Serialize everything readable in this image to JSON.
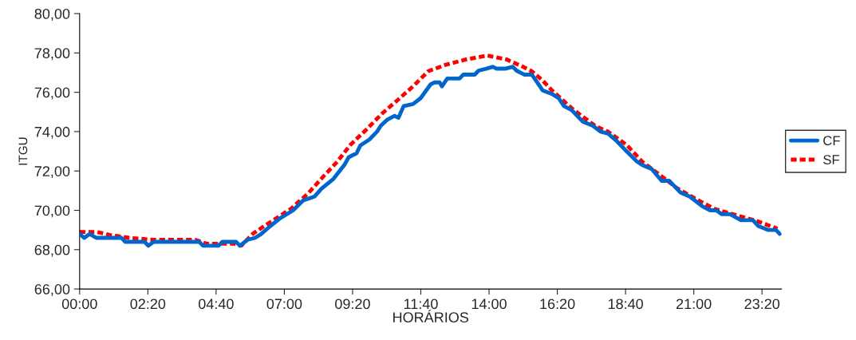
{
  "chart_data": {
    "type": "line",
    "xlabel": "HORÁRIOS",
    "ylabel": "ITGU",
    "xlim": [
      0,
      24
    ],
    "ylim": [
      66,
      80
    ],
    "xticks": [
      {
        "value": 0,
        "label": "00:00"
      },
      {
        "value": 2.3333,
        "label": "02:20"
      },
      {
        "value": 4.6667,
        "label": "04:40"
      },
      {
        "value": 7,
        "label": "07:00"
      },
      {
        "value": 9.3333,
        "label": "09:20"
      },
      {
        "value": 11.6667,
        "label": "11:40"
      },
      {
        "value": 14,
        "label": "14:00"
      },
      {
        "value": 16.3333,
        "label": "16:20"
      },
      {
        "value": 18.6667,
        "label": "18:40"
      },
      {
        "value": 21,
        "label": "21:00"
      },
      {
        "value": 23.3333,
        "label": "23:20"
      }
    ],
    "yticks": [
      {
        "value": 66,
        "label": "66,00"
      },
      {
        "value": 68,
        "label": "68,00"
      },
      {
        "value": 70,
        "label": "70,00"
      },
      {
        "value": 72,
        "label": "72,00"
      },
      {
        "value": 74,
        "label": "74,00"
      },
      {
        "value": 76,
        "label": "76,00"
      },
      {
        "value": 78,
        "label": "78,00"
      },
      {
        "value": 80,
        "label": "80,00"
      }
    ],
    "grid": false,
    "legend": "right",
    "marker": "none",
    "series": [
      {
        "name": "CF",
        "color": "#0066cc",
        "line_style": "solid",
        "x": [
          0,
          0.16,
          0.34,
          0.57,
          1.43,
          1.56,
          2.22,
          2.35,
          2.53,
          4.09,
          4.22,
          4.75,
          4.88,
          5.35,
          5.48,
          5.74,
          6.0,
          6.21,
          6.52,
          6.86,
          7.3,
          7.64,
          8.03,
          8.27,
          8.68,
          9.05,
          9.2,
          9.47,
          9.6,
          9.91,
          10.17,
          10.3,
          10.51,
          10.77,
          10.9,
          11.08,
          11.4,
          11.66,
          12.0,
          12.13,
          12.31,
          12.39,
          12.57,
          12.99,
          13.12,
          13.51,
          13.64,
          13.9,
          14.13,
          14.26,
          14.55,
          14.81,
          14.94,
          15.2,
          15.46,
          15.65,
          15.83,
          16.17,
          16.38,
          16.56,
          16.82,
          17.21,
          17.55,
          17.81,
          18.07,
          18.38,
          18.7,
          19.04,
          19.24,
          19.56,
          19.9,
          20.16,
          20.55,
          20.86,
          21.3,
          21.56,
          21.77,
          21.96,
          22.24,
          22.61,
          23.02,
          23.21,
          23.55,
          23.81,
          23.94
        ],
        "values": [
          68.8,
          68.6,
          68.8,
          68.6,
          68.6,
          68.4,
          68.4,
          68.2,
          68.4,
          68.4,
          68.2,
          68.2,
          68.4,
          68.4,
          68.2,
          68.5,
          68.6,
          68.8,
          69.2,
          69.6,
          70.0,
          70.5,
          70.7,
          71.1,
          71.6,
          72.3,
          72.7,
          72.9,
          73.3,
          73.6,
          74.0,
          74.3,
          74.6,
          74.8,
          74.7,
          75.3,
          75.4,
          75.7,
          76.4,
          76.5,
          76.5,
          76.3,
          76.7,
          76.7,
          76.9,
          76.9,
          77.1,
          77.2,
          77.3,
          77.2,
          77.2,
          77.3,
          77.1,
          76.9,
          76.9,
          76.5,
          76.1,
          75.9,
          75.7,
          75.3,
          75.1,
          74.5,
          74.3,
          74.0,
          73.9,
          73.5,
          73.0,
          72.5,
          72.3,
          72.1,
          71.5,
          71.5,
          70.9,
          70.7,
          70.2,
          70.0,
          70.0,
          69.8,
          69.8,
          69.5,
          69.5,
          69.2,
          69.0,
          69.0,
          68.8
        ]
      },
      {
        "name": "SF",
        "color": "#ff0000",
        "line_style": "dashed",
        "x": [
          0,
          0.57,
          1.04,
          1.69,
          2.53,
          3.52,
          3.96,
          4.35,
          4.82,
          5.29,
          5.53,
          5.92,
          6.26,
          7.22,
          7.82,
          8.34,
          8.81,
          9.26,
          9.78,
          10.35,
          10.87,
          11.4,
          11.92,
          12.52,
          13.22,
          13.95,
          14.6,
          15.2,
          15.46,
          15.83,
          16.17,
          16.87,
          17.65,
          18.07,
          18.7,
          19.24,
          19.9,
          20.42,
          21.2,
          21.72,
          22.5,
          23.13,
          23.86
        ],
        "values": [
          68.9,
          68.9,
          68.75,
          68.6,
          68.5,
          68.5,
          68.5,
          68.3,
          68.3,
          68.3,
          68.2,
          68.8,
          69.15,
          70.07,
          70.87,
          71.73,
          72.47,
          73.33,
          74.07,
          74.93,
          75.6,
          76.3,
          77.07,
          77.4,
          77.67,
          77.87,
          77.67,
          77.27,
          77.07,
          76.6,
          76.07,
          75.13,
          74.27,
          74.0,
          73.33,
          72.47,
          71.73,
          71.13,
          70.47,
          70.07,
          69.73,
          69.47,
          69.07
        ]
      }
    ]
  }
}
